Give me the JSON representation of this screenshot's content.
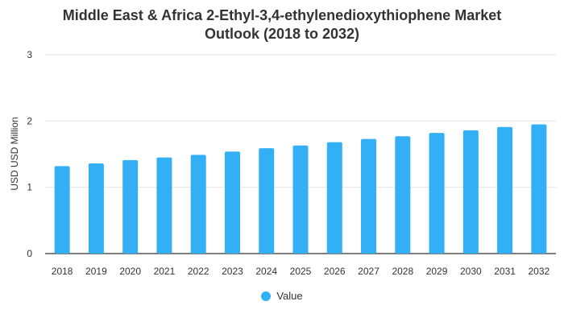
{
  "chart_data": {
    "type": "bar",
    "title_lines": [
      "Middle East & Africa 2-Ethyl-3,4-ethylenedioxythiophene Market",
      "Outlook (2018 to 2032)"
    ],
    "xlabel": "",
    "ylabel": "USD USD Million",
    "categories": [
      "2018",
      "2019",
      "2020",
      "2021",
      "2022",
      "2023",
      "2024",
      "2025",
      "2026",
      "2027",
      "2028",
      "2029",
      "2030",
      "2031",
      "2032"
    ],
    "series": [
      {
        "name": "Value",
        "color": "#33b0f5",
        "values": [
          1.32,
          1.36,
          1.41,
          1.45,
          1.49,
          1.54,
          1.59,
          1.63,
          1.68,
          1.73,
          1.77,
          1.82,
          1.86,
          1.91,
          1.95
        ]
      }
    ],
    "ylim": [
      0,
      3
    ],
    "yticks": [
      0,
      1,
      2,
      3
    ],
    "grid": true,
    "legend_position": "bottom-center",
    "colors": {
      "grid": "#e6e6e6",
      "axis": "#333333",
      "text": "#333333"
    }
  }
}
